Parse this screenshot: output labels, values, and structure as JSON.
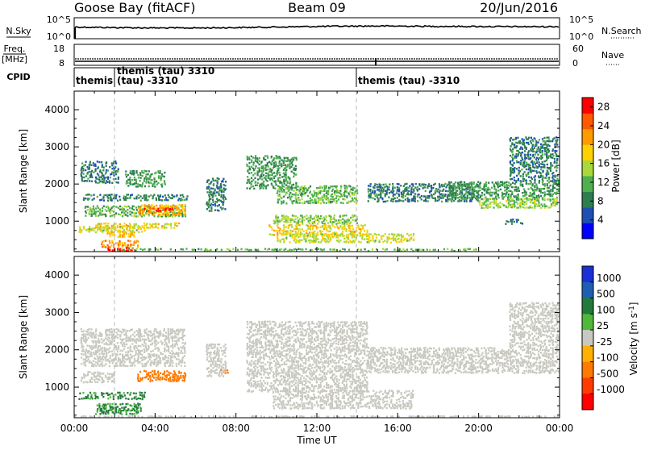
{
  "header": {
    "station": "Goose Bay (fitACF)",
    "beam": "Beam 09",
    "date": "20/Jun/2016"
  },
  "noise_panel": {
    "left_label": "N.Sky",
    "right_label": "N.Search",
    "ticks": [
      "10^5",
      "10^0"
    ]
  },
  "freq_panel": {
    "left_label_top": "Freq.",
    "left_label_bottom": "[MHz]",
    "right_label": "Nave",
    "left_ticks": [
      "18",
      "8"
    ],
    "right_ticks": [
      "60",
      "0"
    ]
  },
  "cpid_panel": {
    "label": "CPID",
    "segments": [
      {
        "text": "themis",
        "sub": ""
      },
      {
        "text": "themis (tau) 3310",
        "sub": "(tau) -3310"
      },
      {
        "text": "themis (tau) -3310",
        "sub": ""
      }
    ]
  },
  "colors": {
    "power_scale": [
      "#0000ff",
      "#1e50b4",
      "#2e7d4f",
      "#4fae4f",
      "#a8d83a",
      "#ffd000",
      "#ff9a00",
      "#ff5a00",
      "#ff0000"
    ],
    "velocity_scale": [
      "#1a2fd6",
      "#1f5fb3",
      "#227a3a",
      "#4fb83a",
      "#c8c8c0",
      "#ffb000",
      "#ff7a00",
      "#ff3c00",
      "#ff0000"
    ]
  },
  "chart_data": [
    {
      "type": "heatmap",
      "name": "power",
      "ylabel": "Slant Range [km]",
      "ylim": [
        180,
        4500
      ],
      "yticks": [
        1000,
        2000,
        3000,
        4000
      ],
      "xlim": [
        0,
        24
      ],
      "xticks": [
        "00:00",
        "04:00",
        "08:00",
        "12:00",
        "16:00",
        "20:00",
        "00:00"
      ],
      "colorbar_label": "Power [dB]",
      "colorbar_ticks": [
        "28",
        "24",
        "20",
        "16",
        "12",
        "8",
        "4"
      ],
      "colorbar_range": [
        0,
        30
      ],
      "regions": [
        {
          "t": [
            0.4,
            5.6
          ],
          "r": [
            1580,
            1760
          ],
          "v": 8
        },
        {
          "t": [
            0.5,
            5.5
          ],
          "r": [
            1150,
            1450
          ],
          "v": 12
        },
        {
          "t": [
            0.2,
            3.5
          ],
          "r": [
            720,
            900
          ],
          "v": 16
        },
        {
          "t": [
            3.1,
            5.5
          ],
          "r": [
            1180,
            1480
          ],
          "v": 20
        },
        {
          "t": [
            3.4,
            5.0
          ],
          "r": [
            1300,
            1400
          ],
          "v": 26
        },
        {
          "t": [
            1.0,
            5.2
          ],
          "r": [
            840,
            990
          ],
          "v": 18
        },
        {
          "t": [
            1.6,
            3.0
          ],
          "r": [
            600,
            760
          ],
          "v": 20
        },
        {
          "t": [
            1.3,
            3.2
          ],
          "r": [
            320,
            520
          ],
          "v": 22
        },
        {
          "t": [
            1.6,
            2.9
          ],
          "r": [
            190,
            320
          ],
          "v": 29
        },
        {
          "t": [
            0.3,
            2.2
          ],
          "r": [
            2050,
            2650
          ],
          "v": 8
        },
        {
          "t": [
            2.5,
            4.5
          ],
          "r": [
            1950,
            2400
          ],
          "v": 10
        },
        {
          "t": [
            6.5,
            7.5
          ],
          "r": [
            1300,
            2200
          ],
          "v": 8
        },
        {
          "t": [
            8.5,
            11.0
          ],
          "r": [
            1900,
            2800
          ],
          "v": 10
        },
        {
          "t": [
            10.0,
            14.0
          ],
          "r": [
            1500,
            2000
          ],
          "v": 12
        },
        {
          "t": [
            9.8,
            14.0
          ],
          "r": [
            950,
            1200
          ],
          "v": 14
        },
        {
          "t": [
            9.6,
            14.5
          ],
          "r": [
            650,
            940
          ],
          "v": 18
        },
        {
          "t": [
            10.0,
            16.8
          ],
          "r": [
            450,
            700
          ],
          "v": 16
        },
        {
          "t": [
            2.0,
            20.0
          ],
          "r": [
            200,
            300
          ],
          "v": 12
        },
        {
          "t": [
            14.5,
            20.0
          ],
          "r": [
            1550,
            2050
          ],
          "v": 8
        },
        {
          "t": [
            18.5,
            24.0
          ],
          "r": [
            1600,
            2100
          ],
          "v": 10
        },
        {
          "t": [
            20.0,
            24.0
          ],
          "r": [
            1380,
            1650
          ],
          "v": 14
        },
        {
          "t": [
            21.5,
            24.0
          ],
          "r": [
            2100,
            3300
          ],
          "v": 8
        },
        {
          "t": [
            21.3,
            22.2
          ],
          "r": [
            950,
            1100
          ],
          "v": 8
        }
      ]
    },
    {
      "type": "heatmap",
      "name": "velocity",
      "ylabel": "Slant Range [km]",
      "ylim": [
        180,
        4500
      ],
      "yticks": [
        1000,
        2000,
        3000,
        4000
      ],
      "xlim": [
        0,
        24
      ],
      "xticks": [
        "00:00",
        "04:00",
        "08:00",
        "12:00",
        "16:00",
        "20:00",
        "00:00"
      ],
      "xlabel": "Time UT",
      "colorbar_label": "Velocity [m s^-1]",
      "colorbar_ticks": [
        "1000",
        "500",
        "100",
        "25",
        "-25",
        "-100",
        "-500",
        "-1000"
      ],
      "regions": [
        {
          "t": [
            0.3,
            5.5
          ],
          "r": [
            1580,
            2600
          ],
          "v": 0
        },
        {
          "t": [
            0.3,
            2.0
          ],
          "r": [
            1150,
            1450
          ],
          "v": 0
        },
        {
          "t": [
            0.2,
            3.5
          ],
          "r": [
            700,
            900
          ],
          "v": 110
        },
        {
          "t": [
            1.0,
            3.3
          ],
          "r": [
            300,
            600
          ],
          "v": 110
        },
        {
          "t": [
            3.1,
            5.5
          ],
          "r": [
            1180,
            1480
          ],
          "v": -120
        },
        {
          "t": [
            7.2,
            7.6
          ],
          "r": [
            1350,
            1500
          ],
          "v": -150
        },
        {
          "t": [
            6.5,
            7.5
          ],
          "r": [
            1300,
            2200
          ],
          "v": 0
        },
        {
          "t": [
            8.5,
            14.5
          ],
          "r": [
            900,
            2800
          ],
          "v": 0
        },
        {
          "t": [
            9.8,
            16.8
          ],
          "r": [
            450,
            950
          ],
          "v": 0
        },
        {
          "t": [
            14.5,
            24.0
          ],
          "r": [
            1400,
            2100
          ],
          "v": 0
        },
        {
          "t": [
            21.5,
            24.0
          ],
          "r": [
            2100,
            3300
          ],
          "v": 0
        },
        {
          "t": [
            0.0,
            24.0
          ],
          "r": [
            190,
            260
          ],
          "v": 0
        }
      ]
    }
  ]
}
